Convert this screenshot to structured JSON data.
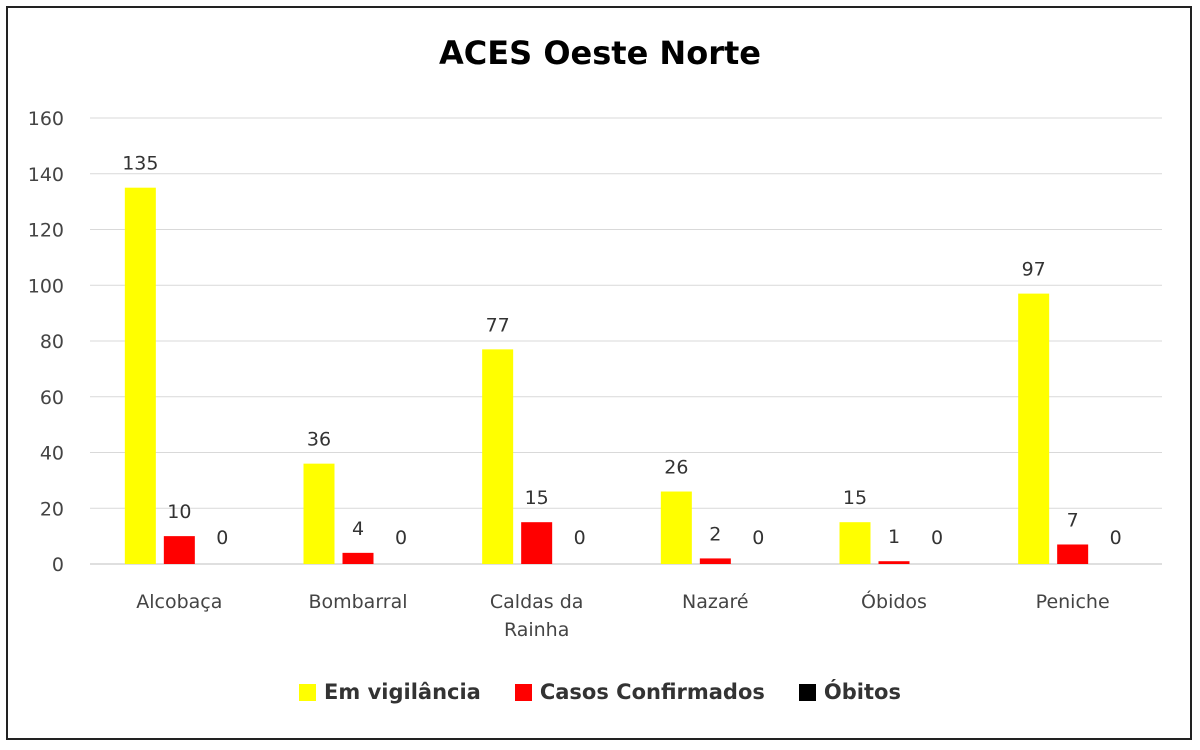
{
  "chart_data": {
    "type": "bar",
    "title": "ACES Oeste Norte",
    "categories": [
      [
        "Alcobaça"
      ],
      [
        "Bombarral"
      ],
      [
        "Caldas da",
        "Rainha"
      ],
      [
        "Nazaré"
      ],
      [
        "Óbidos"
      ],
      [
        "Peniche"
      ]
    ],
    "series": [
      {
        "name": "Em vigilância",
        "color": "#FFFF00",
        "values": [
          135,
          36,
          77,
          26,
          15,
          97
        ]
      },
      {
        "name": "Casos Confirmados",
        "color": "#FF0000",
        "values": [
          10,
          4,
          15,
          2,
          1,
          7
        ]
      },
      {
        "name": "Óbitos",
        "color": "#000000",
        "values": [
          0,
          0,
          0,
          0,
          0,
          0
        ]
      }
    ],
    "ylim": [
      0,
      160
    ],
    "yticks": [
      0,
      20,
      40,
      60,
      80,
      100,
      120,
      140,
      160
    ],
    "grid": true,
    "legend_position": "bottom"
  }
}
